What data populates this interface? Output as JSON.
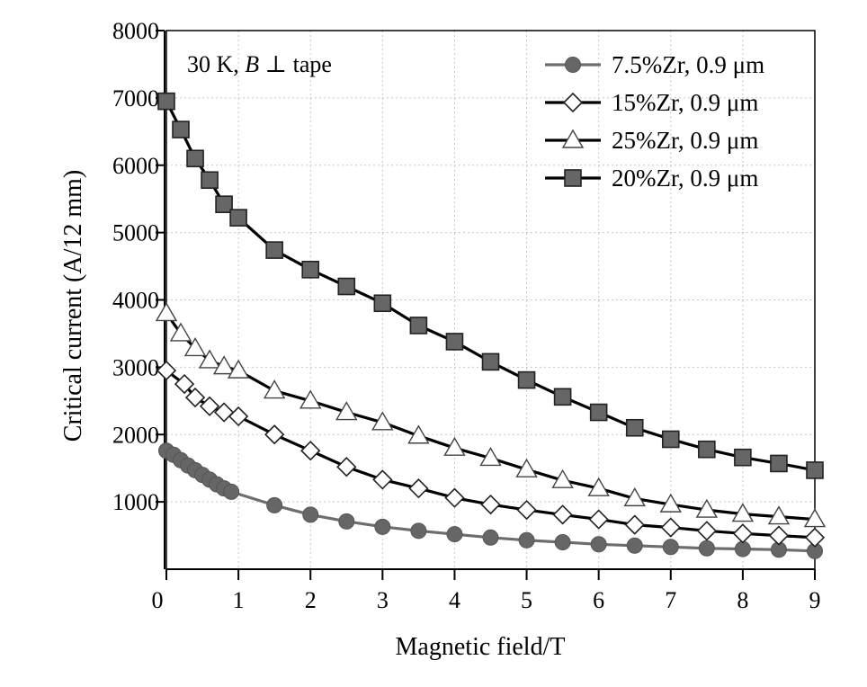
{
  "chart_data": {
    "type": "line",
    "title": "",
    "xlabel": "Magnetic field/T",
    "ylabel": "Critical current (A/12 mm)",
    "xlim": [
      0,
      9
    ],
    "ylim": [
      0,
      8000
    ],
    "x_ticks": [
      "0",
      "1",
      "2",
      "3",
      "4",
      "5",
      "6",
      "7",
      "8",
      "9"
    ],
    "y_ticks": [
      "1000",
      "2000",
      "3000",
      "4000",
      "5000",
      "6000",
      "7000",
      "8000"
    ],
    "annotation": {
      "prefix": "30 K, ",
      "var": "B",
      "symbol": "⊥",
      "suffix": "tape"
    },
    "legend_position": "top-right",
    "series": [
      {
        "name": "7.5%Zr, 0.9 μm",
        "marker": "circle",
        "marker_color": "#666666",
        "line_color": "#6d6d6d",
        "points": [
          [
            0,
            1760
          ],
          [
            0.1,
            1700
          ],
          [
            0.2,
            1620
          ],
          [
            0.3,
            1540
          ],
          [
            0.4,
            1470
          ],
          [
            0.5,
            1400
          ],
          [
            0.6,
            1330
          ],
          [
            0.7,
            1260
          ],
          [
            0.8,
            1200
          ],
          [
            0.9,
            1150
          ],
          [
            1.5,
            950
          ],
          [
            2,
            810
          ],
          [
            2.5,
            710
          ],
          [
            3,
            630
          ],
          [
            3.5,
            570
          ],
          [
            4,
            520
          ],
          [
            4.5,
            470
          ],
          [
            5,
            430
          ],
          [
            5.5,
            400
          ],
          [
            6,
            370
          ],
          [
            6.5,
            350
          ],
          [
            7,
            330
          ],
          [
            7.5,
            310
          ],
          [
            8,
            300
          ],
          [
            8.5,
            290
          ],
          [
            9,
            270
          ]
        ]
      },
      {
        "name": "15%Zr, 0.9 μm",
        "marker": "diamond",
        "marker_color": "#ffffff",
        "line_color": "#000000",
        "points": [
          [
            0,
            2950
          ],
          [
            0.25,
            2750
          ],
          [
            0.4,
            2550
          ],
          [
            0.6,
            2420
          ],
          [
            0.8,
            2330
          ],
          [
            1,
            2270
          ],
          [
            1.5,
            2000
          ],
          [
            2,
            1760
          ],
          [
            2.5,
            1520
          ],
          [
            3,
            1330
          ],
          [
            3.5,
            1200
          ],
          [
            4,
            1060
          ],
          [
            4.5,
            960
          ],
          [
            5,
            880
          ],
          [
            5.5,
            810
          ],
          [
            6,
            740
          ],
          [
            6.5,
            660
          ],
          [
            7,
            620
          ],
          [
            7.5,
            570
          ],
          [
            8,
            530
          ],
          [
            8.5,
            500
          ],
          [
            9,
            470
          ]
        ]
      },
      {
        "name": "25%Zr, 0.9 μm",
        "marker": "triangle",
        "marker_color": "#ffffff",
        "line_color": "#000000",
        "points": [
          [
            0,
            3800
          ],
          [
            0.2,
            3500
          ],
          [
            0.4,
            3280
          ],
          [
            0.6,
            3100
          ],
          [
            0.8,
            3010
          ],
          [
            1,
            2950
          ],
          [
            1.5,
            2650
          ],
          [
            2,
            2500
          ],
          [
            2.5,
            2330
          ],
          [
            3,
            2180
          ],
          [
            3.5,
            1980
          ],
          [
            4,
            1800
          ],
          [
            4.5,
            1650
          ],
          [
            5,
            1480
          ],
          [
            5.5,
            1320
          ],
          [
            6,
            1200
          ],
          [
            6.5,
            1050
          ],
          [
            7,
            960
          ],
          [
            7.5,
            880
          ],
          [
            8,
            820
          ],
          [
            8.5,
            780
          ],
          [
            9,
            740
          ]
        ]
      },
      {
        "name": "20%Zr, 0.9 μm",
        "marker": "square",
        "marker_color": "#666666",
        "line_color": "#000000",
        "points": [
          [
            0,
            6950
          ],
          [
            0.2,
            6530
          ],
          [
            0.4,
            6100
          ],
          [
            0.6,
            5780
          ],
          [
            0.8,
            5420
          ],
          [
            1,
            5220
          ],
          [
            1.5,
            4740
          ],
          [
            2,
            4450
          ],
          [
            2.5,
            4200
          ],
          [
            3,
            3950
          ],
          [
            3.5,
            3620
          ],
          [
            4,
            3380
          ],
          [
            4.5,
            3080
          ],
          [
            5,
            2810
          ],
          [
            5.5,
            2560
          ],
          [
            6,
            2330
          ],
          [
            6.5,
            2100
          ],
          [
            7,
            1930
          ],
          [
            7.5,
            1780
          ],
          [
            8,
            1660
          ],
          [
            8.5,
            1570
          ],
          [
            9,
            1470
          ]
        ]
      }
    ]
  }
}
